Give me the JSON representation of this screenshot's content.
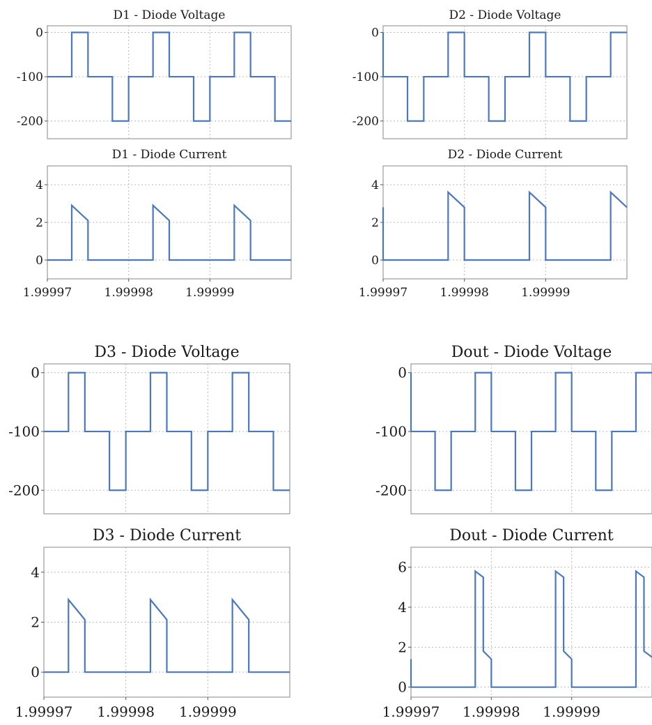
{
  "chart_data": [
    {
      "type": "line",
      "title": "D1 - Diode Voltage",
      "xlim": [
        1.99997,
        2.0
      ],
      "ylim": [
        -240,
        15
      ],
      "yticks": [
        0,
        -100,
        -200
      ],
      "xticks": [],
      "series": [
        {
          "x": [
            1.99997,
            1.999973,
            1.999973,
            1.999975,
            1.999975,
            1.999978,
            1.999978,
            1.99998,
            1.99998,
            1.999983,
            1.999983,
            1.999985,
            1.999985,
            1.999988,
            1.999988,
            1.99999,
            1.99999,
            1.999993,
            1.999993,
            1.999995,
            1.999995,
            1.999998,
            1.999998,
            2.0
          ],
          "values": [
            -100,
            -100,
            0,
            0,
            -100,
            -100,
            -200,
            -200,
            -100,
            -100,
            0,
            0,
            -100,
            -100,
            -200,
            -200,
            -100,
            -100,
            0,
            0,
            -100,
            -100,
            -200,
            -200
          ]
        }
      ]
    },
    {
      "type": "line",
      "title": "D1 - Diode Current",
      "xlim": [
        1.99997,
        2.0
      ],
      "ylim": [
        -1,
        5
      ],
      "yticks": [
        4,
        2,
        0
      ],
      "xticks": [
        "1.99997",
        "1.99998",
        "1.99999"
      ],
      "series": [
        {
          "x": [
            1.99997,
            1.999973,
            1.999973,
            1.999975,
            1.999975,
            1.999983,
            1.999983,
            1.999985,
            1.999985,
            1.999993,
            1.999993,
            1.999995,
            1.999995,
            2.0
          ],
          "values": [
            0,
            0,
            2.9,
            2.1,
            0,
            0,
            2.9,
            2.1,
            0,
            0,
            2.9,
            2.1,
            0,
            0
          ]
        }
      ]
    },
    {
      "type": "line",
      "title": "D2 - Diode Voltage",
      "xlim": [
        1.99997,
        2.0
      ],
      "ylim": [
        -240,
        15
      ],
      "yticks": [
        0,
        -100,
        -200
      ],
      "xticks": [],
      "series": [
        {
          "x": [
            1.99997,
            1.99997,
            1.999973,
            1.999973,
            1.999975,
            1.999975,
            1.999978,
            1.999978,
            1.99998,
            1.99998,
            1.999983,
            1.999983,
            1.999985,
            1.999985,
            1.999988,
            1.999988,
            1.99999,
            1.99999,
            1.999993,
            1.999993,
            1.999995,
            1.999995,
            1.999998,
            1.999998,
            2.0
          ],
          "values": [
            0,
            -100,
            -100,
            -200,
            -200,
            -100,
            -100,
            0,
            0,
            -100,
            -100,
            -200,
            -200,
            -100,
            -100,
            0,
            0,
            -100,
            -100,
            -200,
            -200,
            -100,
            -100,
            0,
            0
          ]
        }
      ]
    },
    {
      "type": "line",
      "title": "D2 - Diode Current",
      "xlim": [
        1.99997,
        2.0
      ],
      "ylim": [
        -1,
        5
      ],
      "yticks": [
        4,
        2,
        0
      ],
      "xticks": [
        "1.99997",
        "1.99998",
        "1.99999"
      ],
      "series": [
        {
          "x": [
            1.99997,
            1.99997,
            1.999978,
            1.999978,
            1.99998,
            1.99998,
            1.999988,
            1.999988,
            1.99999,
            1.99999,
            1.999998,
            1.999998,
            2.0
          ],
          "values": [
            2.8,
            0,
            0,
            3.6,
            2.8,
            0,
            0,
            3.6,
            2.8,
            0,
            0,
            3.6,
            2.8
          ]
        }
      ]
    },
    {
      "type": "line",
      "title": "D3 - Diode Voltage",
      "xlim": [
        1.99997,
        2.0
      ],
      "ylim": [
        -240,
        15
      ],
      "yticks": [
        0,
        -100,
        -200
      ],
      "xticks": [],
      "series": [
        {
          "x": [
            1.99997,
            1.999973,
            1.999973,
            1.999975,
            1.999975,
            1.999978,
            1.999978,
            1.99998,
            1.99998,
            1.999983,
            1.999983,
            1.999985,
            1.999985,
            1.999988,
            1.999988,
            1.99999,
            1.99999,
            1.999993,
            1.999993,
            1.999995,
            1.999995,
            1.999998,
            1.999998,
            2.0
          ],
          "values": [
            -100,
            -100,
            0,
            0,
            -100,
            -100,
            -200,
            -200,
            -100,
            -100,
            0,
            0,
            -100,
            -100,
            -200,
            -200,
            -100,
            -100,
            0,
            0,
            -100,
            -100,
            -200,
            -200
          ]
        }
      ]
    },
    {
      "type": "line",
      "title": "D3 - Diode Current",
      "xlim": [
        1.99997,
        2.0
      ],
      "ylim": [
        -1,
        5
      ],
      "yticks": [
        4,
        2,
        0
      ],
      "xticks": [
        "1.99997",
        "1.99998",
        "1.99999"
      ],
      "series": [
        {
          "x": [
            1.99997,
            1.999973,
            1.999973,
            1.999975,
            1.999975,
            1.999983,
            1.999983,
            1.999985,
            1.999985,
            1.999993,
            1.999993,
            1.999995,
            1.999995,
            2.0
          ],
          "values": [
            0,
            0,
            2.9,
            2.1,
            0,
            0,
            2.9,
            2.1,
            0,
            0,
            2.9,
            2.1,
            0,
            0
          ]
        }
      ]
    },
    {
      "type": "line",
      "title": "Dout - Diode Voltage",
      "xlim": [
        1.99997,
        2.0
      ],
      "ylim": [
        -240,
        15
      ],
      "yticks": [
        0,
        -100,
        -200
      ],
      "xticks": [],
      "series": [
        {
          "x": [
            1.99997,
            1.99997,
            1.999973,
            1.999973,
            1.999975,
            1.999975,
            1.999978,
            1.999978,
            1.99998,
            1.99998,
            1.999983,
            1.999983,
            1.999985,
            1.999985,
            1.999988,
            1.999988,
            1.99999,
            1.99999,
            1.999993,
            1.999993,
            1.999995,
            1.999995,
            1.999998,
            1.999998,
            2.0
          ],
          "values": [
            0,
            -100,
            -100,
            -200,
            -200,
            -100,
            -100,
            0,
            0,
            -100,
            -100,
            -200,
            -200,
            -100,
            -100,
            0,
            0,
            -100,
            -100,
            -200,
            -200,
            -100,
            -100,
            0,
            0
          ]
        }
      ]
    },
    {
      "type": "line",
      "title": "Dout - Diode Current",
      "xlim": [
        1.99997,
        2.0
      ],
      "ylim": [
        -0.5,
        7
      ],
      "yticks": [
        6,
        4,
        2,
        0
      ],
      "xticks": [
        "1.99997",
        "1.99998",
        "1.99999"
      ],
      "series": [
        {
          "x": [
            1.99997,
            1.99997,
            1.999978,
            1.999978,
            1.999979,
            1.999979,
            1.99998,
            1.99998,
            1.999988,
            1.999988,
            1.999989,
            1.999989,
            1.99999,
            1.99999,
            1.999998,
            1.999998,
            1.999999,
            1.999999,
            2.0
          ],
          "values": [
            1.4,
            0,
            0,
            5.8,
            5.5,
            1.8,
            1.4,
            0,
            0,
            5.8,
            5.5,
            1.8,
            1.4,
            0,
            0,
            5.8,
            5.5,
            1.8,
            1.5
          ]
        }
      ]
    }
  ]
}
